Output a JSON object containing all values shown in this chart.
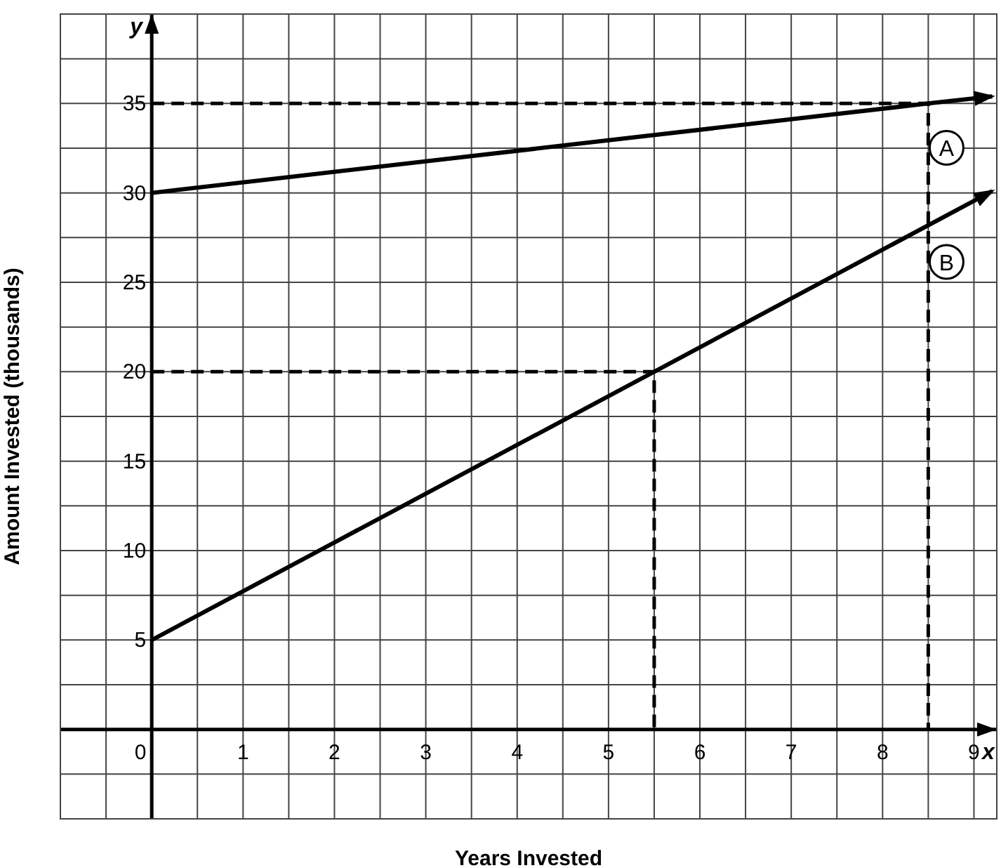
{
  "chart_data": {
    "type": "line",
    "xlabel": "Years Invested",
    "ylabel": "Amount Invested (thousands)",
    "annotations": [
      "x",
      "y"
    ],
    "xlim": [
      -1,
      9.25
    ],
    "ylim": [
      -5,
      40
    ],
    "xticks": [
      {
        "value": -1,
        "label": null
      },
      {
        "value": -0.5,
        "label": null
      },
      {
        "value": 0,
        "label": "0"
      },
      {
        "value": 0.5,
        "label": null
      },
      1,
      {
        "value": 1.5,
        "label": null
      },
      2,
      {
        "value": 2.5,
        "label": null
      },
      3,
      {
        "value": 3.5,
        "label": null
      },
      4,
      {
        "value": 4.5,
        "label": null
      },
      5,
      {
        "value": 5.5,
        "label": null
      },
      6,
      {
        "value": 6.5,
        "label": null
      },
      7,
      {
        "value": 7.5,
        "label": null
      },
      8,
      {
        "value": 8.5,
        "label": null
      },
      9
    ],
    "yticks": [
      {
        "value": -5,
        "label": null
      },
      {
        "value": -2.5,
        "label": null
      },
      {
        "value": 0,
        "label": null
      },
      {
        "value": 2.5,
        "label": null
      },
      5,
      {
        "value": 7.5,
        "label": null
      },
      10,
      {
        "value": 12.5,
        "label": null
      },
      15,
      {
        "value": 17.5,
        "label": null
      },
      20,
      {
        "value": 22.5,
        "label": null
      },
      25,
      {
        "value": 27.5,
        "label": null
      },
      30,
      {
        "value": 32.5,
        "label": null
      },
      35,
      {
        "value": 37.5,
        "label": null
      },
      {
        "value": 40,
        "label": null
      }
    ],
    "grid": true,
    "marker": "none",
    "line_style": "solid",
    "series": [
      {
        "name": "A",
        "color": "#000000",
        "x": [
          0,
          8.5,
          9.2
        ],
        "values": [
          30,
          35,
          35.4
        ]
      },
      {
        "name": "B",
        "color": "#000000",
        "x": [
          0,
          5.5,
          9.2
        ],
        "values": [
          5,
          20,
          30.1
        ]
      },
      {
        "color": "#000000",
        "line_style": "dashed",
        "x": [
          0,
          8.5,
          8.5
        ],
        "values": [
          35,
          35,
          0
        ]
      },
      {
        "color": "#000000",
        "line_style": "dashed",
        "x": [
          0,
          5.5,
          5.5
        ],
        "values": [
          20,
          20,
          0
        ]
      }
    ]
  }
}
